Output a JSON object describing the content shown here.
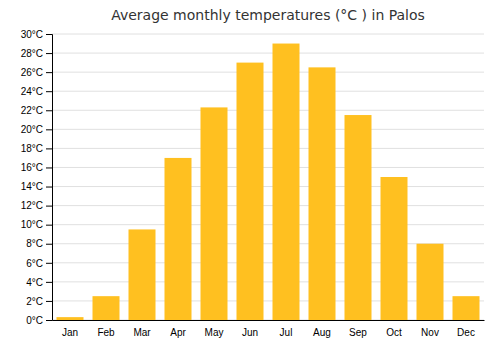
{
  "chart_data": {
    "type": "bar",
    "title": "Average monthly temperatures (°C ) in Palos",
    "categories": [
      "Jan",
      "Feb",
      "Mar",
      "Apr",
      "May",
      "Jun",
      "Jul",
      "Aug",
      "Sep",
      "Oct",
      "Nov",
      "Dec"
    ],
    "values": [
      0.3,
      2.5,
      9.5,
      17.0,
      22.3,
      27.0,
      29.0,
      26.5,
      21.5,
      15.0,
      8.0,
      2.5
    ],
    "color": "#FFC020",
    "ylim": [
      0,
      30
    ],
    "yticks": [
      {
        "value": 0,
        "label": "0°C"
      },
      {
        "value": 2,
        "label": "2°C"
      },
      {
        "value": 4,
        "label": "4°C"
      },
      {
        "value": 6,
        "label": "6°C"
      },
      {
        "value": 8,
        "label": "8°C"
      },
      {
        "value": 10,
        "label": "10°C"
      },
      {
        "value": 12,
        "label": "12°C"
      },
      {
        "value": 14,
        "label": "14°C"
      },
      {
        "value": 16,
        "label": "16°C"
      },
      {
        "value": 18,
        "label": "18°C"
      },
      {
        "value": 20,
        "label": "20°C"
      },
      {
        "value": 22,
        "label": "22°C"
      },
      {
        "value": 24,
        "label": "24°C"
      },
      {
        "value": 26,
        "label": "26°C"
      },
      {
        "value": 28,
        "label": "28°C"
      },
      {
        "value": 30,
        "label": "30°C"
      }
    ],
    "grid": true
  }
}
